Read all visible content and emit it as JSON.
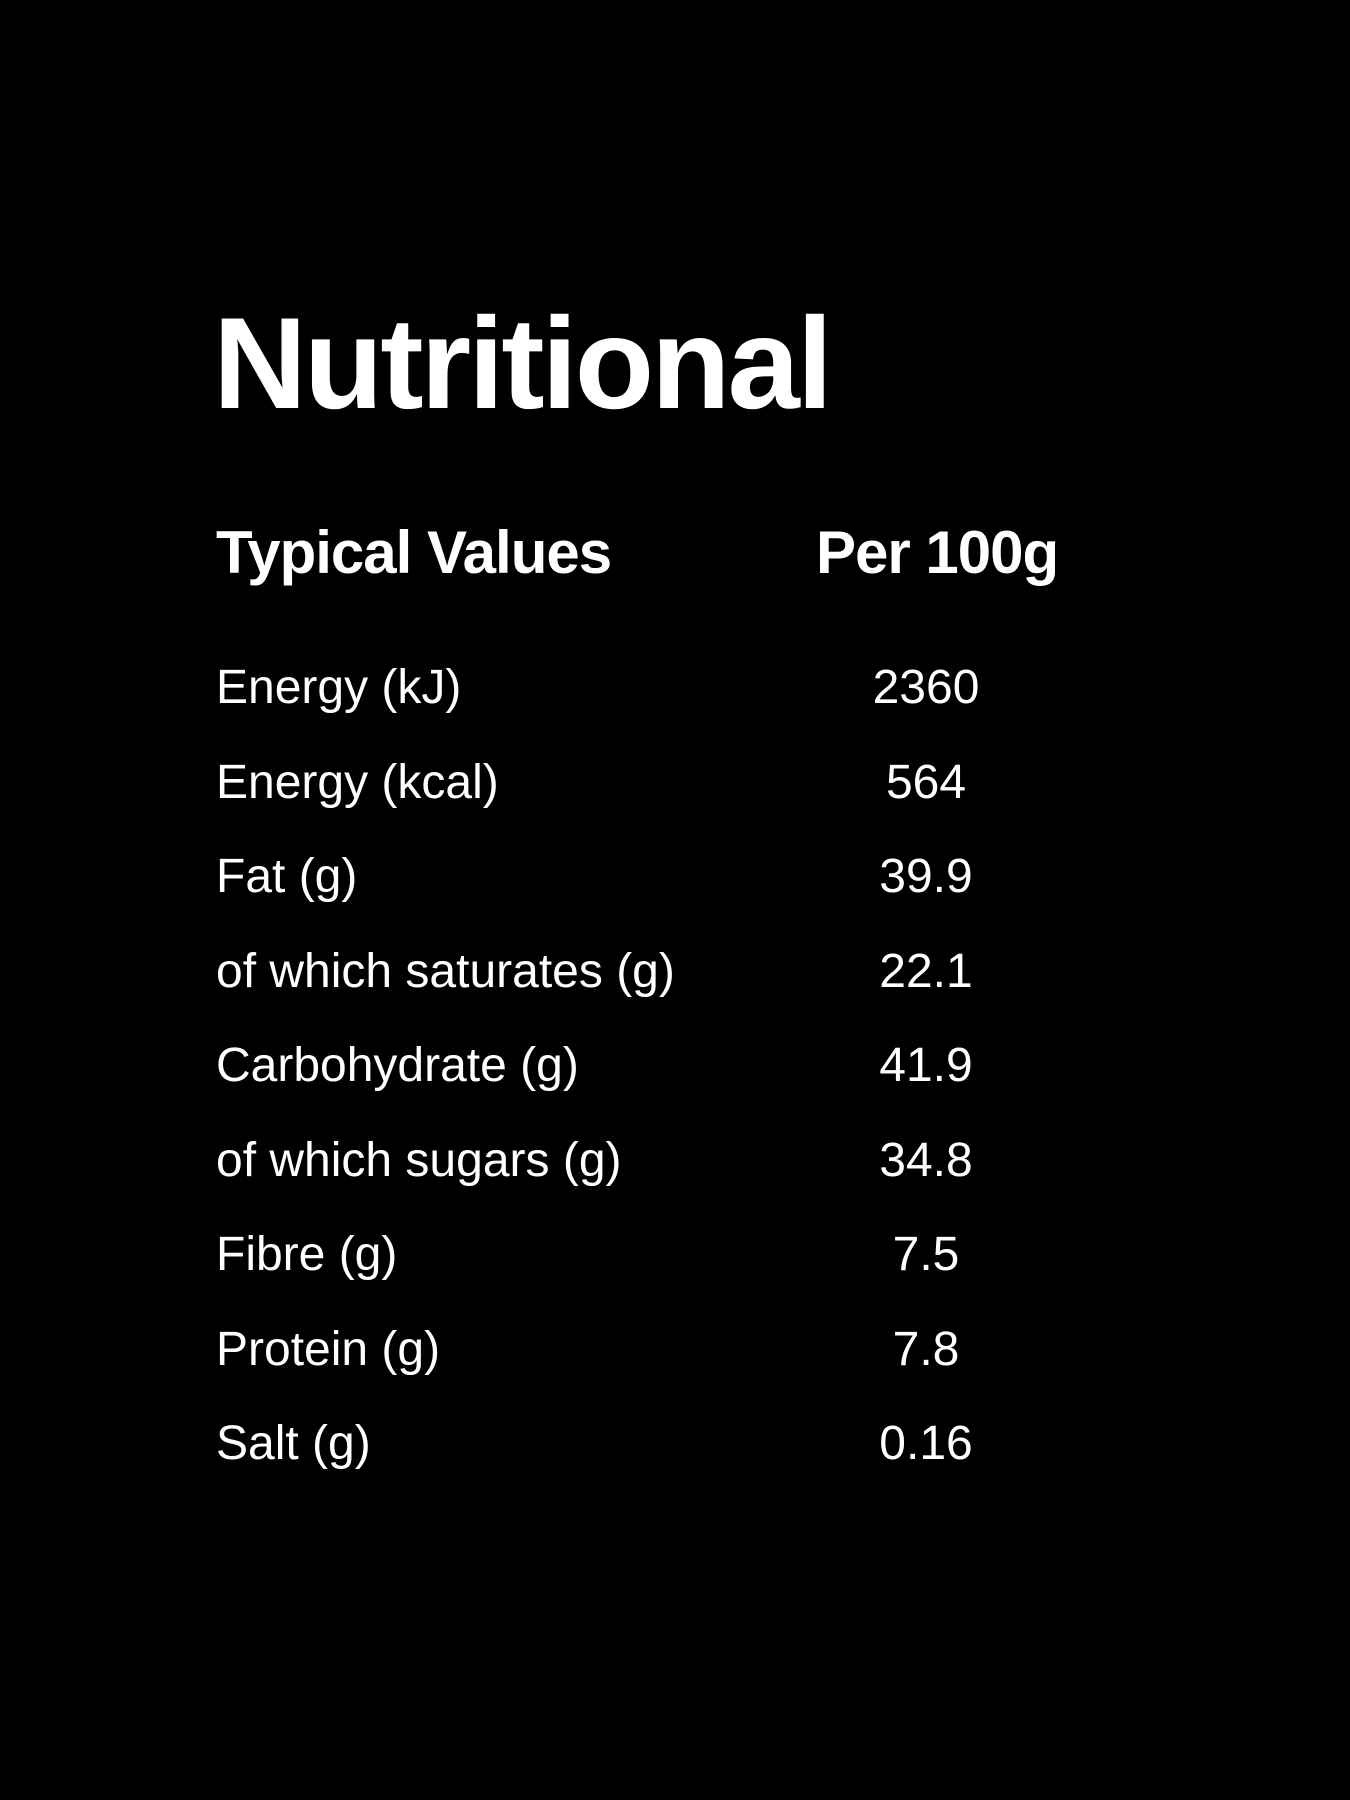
{
  "title": "Nutritional",
  "header": {
    "label": "Typical Values",
    "value": "Per 100g"
  },
  "rows": [
    {
      "label": "Energy (kJ)",
      "value": "2360"
    },
    {
      "label": "Energy (kcal)",
      "value": "564"
    },
    {
      "label": "Fat (g)",
      "value": "39.9"
    },
    {
      "label": "of which saturates (g)",
      "value": "22.1"
    },
    {
      "label": "Carbohydrate (g)",
      "value": "41.9"
    },
    {
      "label": "of which sugars (g)",
      "value": "34.8"
    },
    {
      "label": "Fibre (g)",
      "value": "7.5"
    },
    {
      "label": "Protein (g)",
      "value": "7.8"
    },
    {
      "label": "Salt (g)",
      "value": "0.16"
    }
  ],
  "colors": {
    "background": "#000000",
    "text": "#ffffff"
  }
}
